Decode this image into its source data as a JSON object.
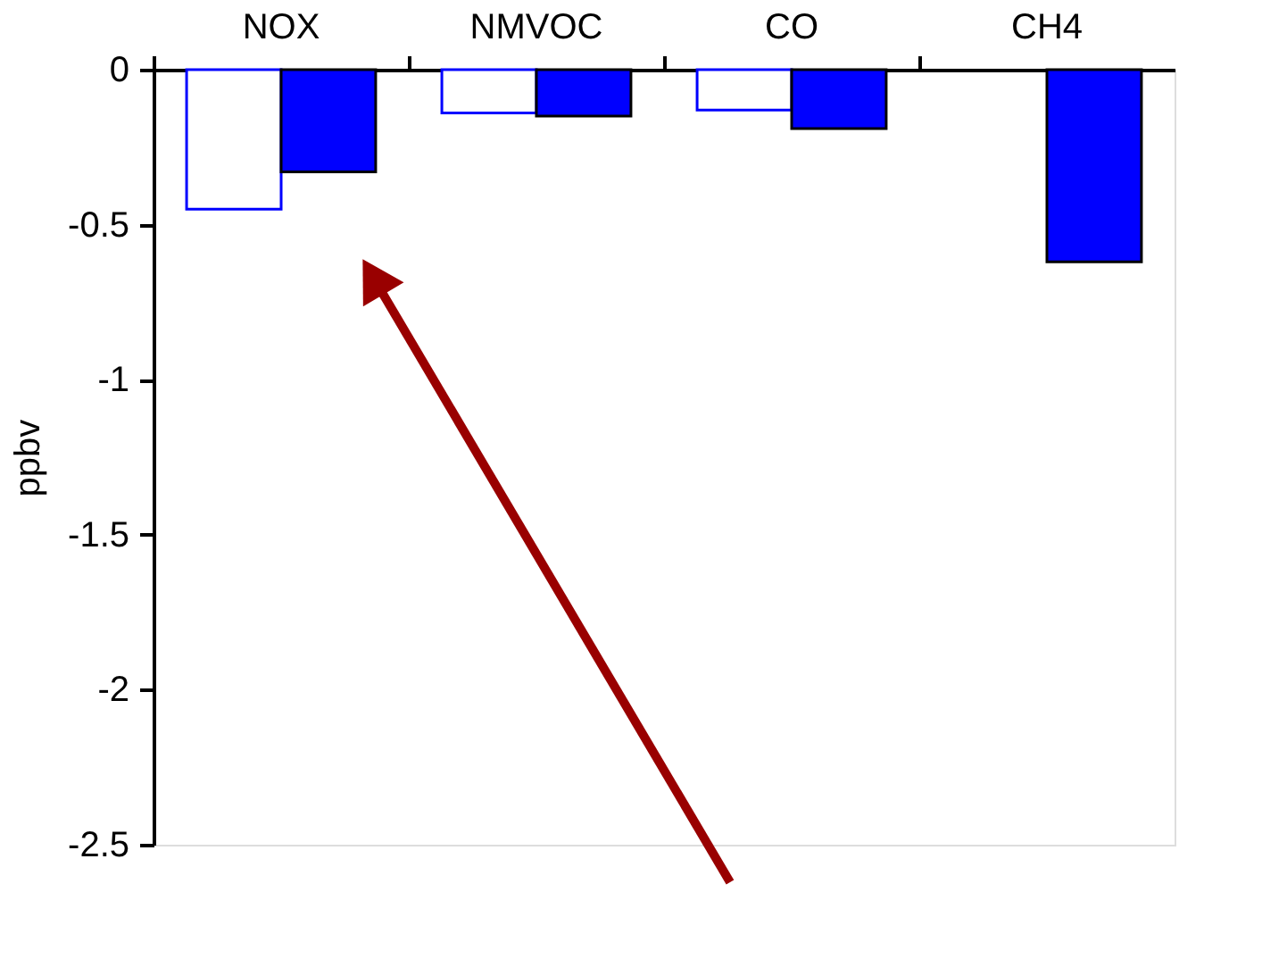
{
  "chart_data": {
    "type": "bar",
    "ylabel": "ppbv",
    "categories": [
      "NOX",
      "NMVOC",
      "CO",
      "CH4"
    ],
    "series": [
      {
        "color": "#ffffff",
        "values": [
          -0.45,
          -0.14,
          -0.13,
          null
        ]
      },
      {
        "color": "#0000ff",
        "values": [
          -0.33,
          -0.15,
          -0.19,
          -0.62
        ]
      }
    ],
    "ylim": [
      -2.5,
      0
    ],
    "yticks": [
      0,
      -0.5,
      -1,
      -1.5,
      -2,
      -2.5
    ],
    "grid": false,
    "legend": false
  }
}
